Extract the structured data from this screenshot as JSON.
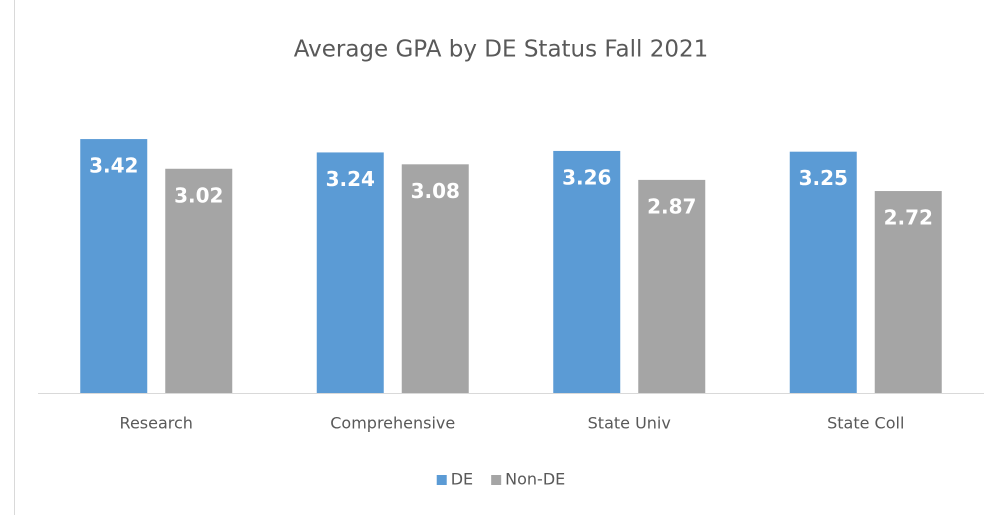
{
  "chart_data": {
    "type": "bar",
    "title": "Average GPA by DE Status Fall 2021",
    "categories": [
      "Research",
      "Comprehensive",
      "State Univ",
      "State Coll"
    ],
    "series": [
      {
        "name": "DE",
        "color": "#5b9bd5",
        "values": [
          3.42,
          3.24,
          3.26,
          3.25
        ]
      },
      {
        "name": "Non-DE",
        "color": "#a5a5a5",
        "values": [
          3.02,
          3.08,
          2.87,
          2.72
        ]
      }
    ],
    "ylim": [
      0,
      4
    ],
    "legend": "bottom"
  }
}
